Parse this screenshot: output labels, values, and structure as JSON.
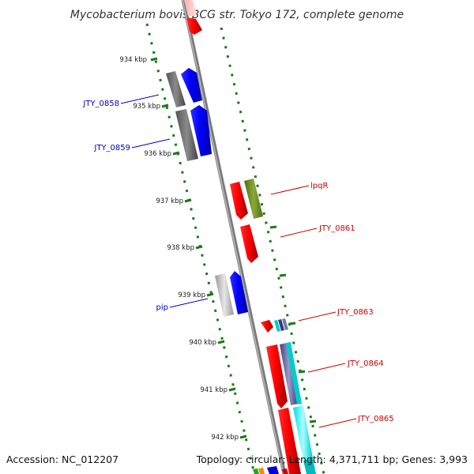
{
  "title": "Mycobacterium bovis BCG str. Tokyo 172, complete genome",
  "footer": {
    "accession": "Accession: NC_012207",
    "summary": "Topology: circular; Length: 4,371,711 bp; Genes: 3,993"
  },
  "kbp_labels": [
    "934 kbp",
    "935 kbp",
    "936 kbp",
    "937 kbp",
    "938 kbp",
    "939 kbp",
    "940 kbp",
    "941 kbp",
    "942 kbp"
  ],
  "genes": [
    {
      "id": "JTY_0858",
      "strand": "minus",
      "color": "#0000cc"
    },
    {
      "id": "JTY_0859",
      "strand": "minus",
      "color": "#0000cc"
    },
    {
      "id": "lpqR",
      "strand": "plus",
      "color": "#cc0000"
    },
    {
      "id": "JTY_0861",
      "strand": "plus",
      "color": "#cc0000"
    },
    {
      "id": "pip",
      "strand": "minus",
      "color": "#0000cc"
    },
    {
      "id": "JTY_0863",
      "strand": "plus",
      "color": "#cc0000"
    },
    {
      "id": "JTY_0864",
      "strand": "plus",
      "color": "#cc0000"
    },
    {
      "id": "JTY_0865",
      "strand": "plus",
      "color": "#cc0000"
    }
  ],
  "colors": {
    "backbone": "#888888",
    "ticks": "#1a7a1a",
    "minus_label": "#0000cc",
    "plus_label": "#cc0000"
  }
}
